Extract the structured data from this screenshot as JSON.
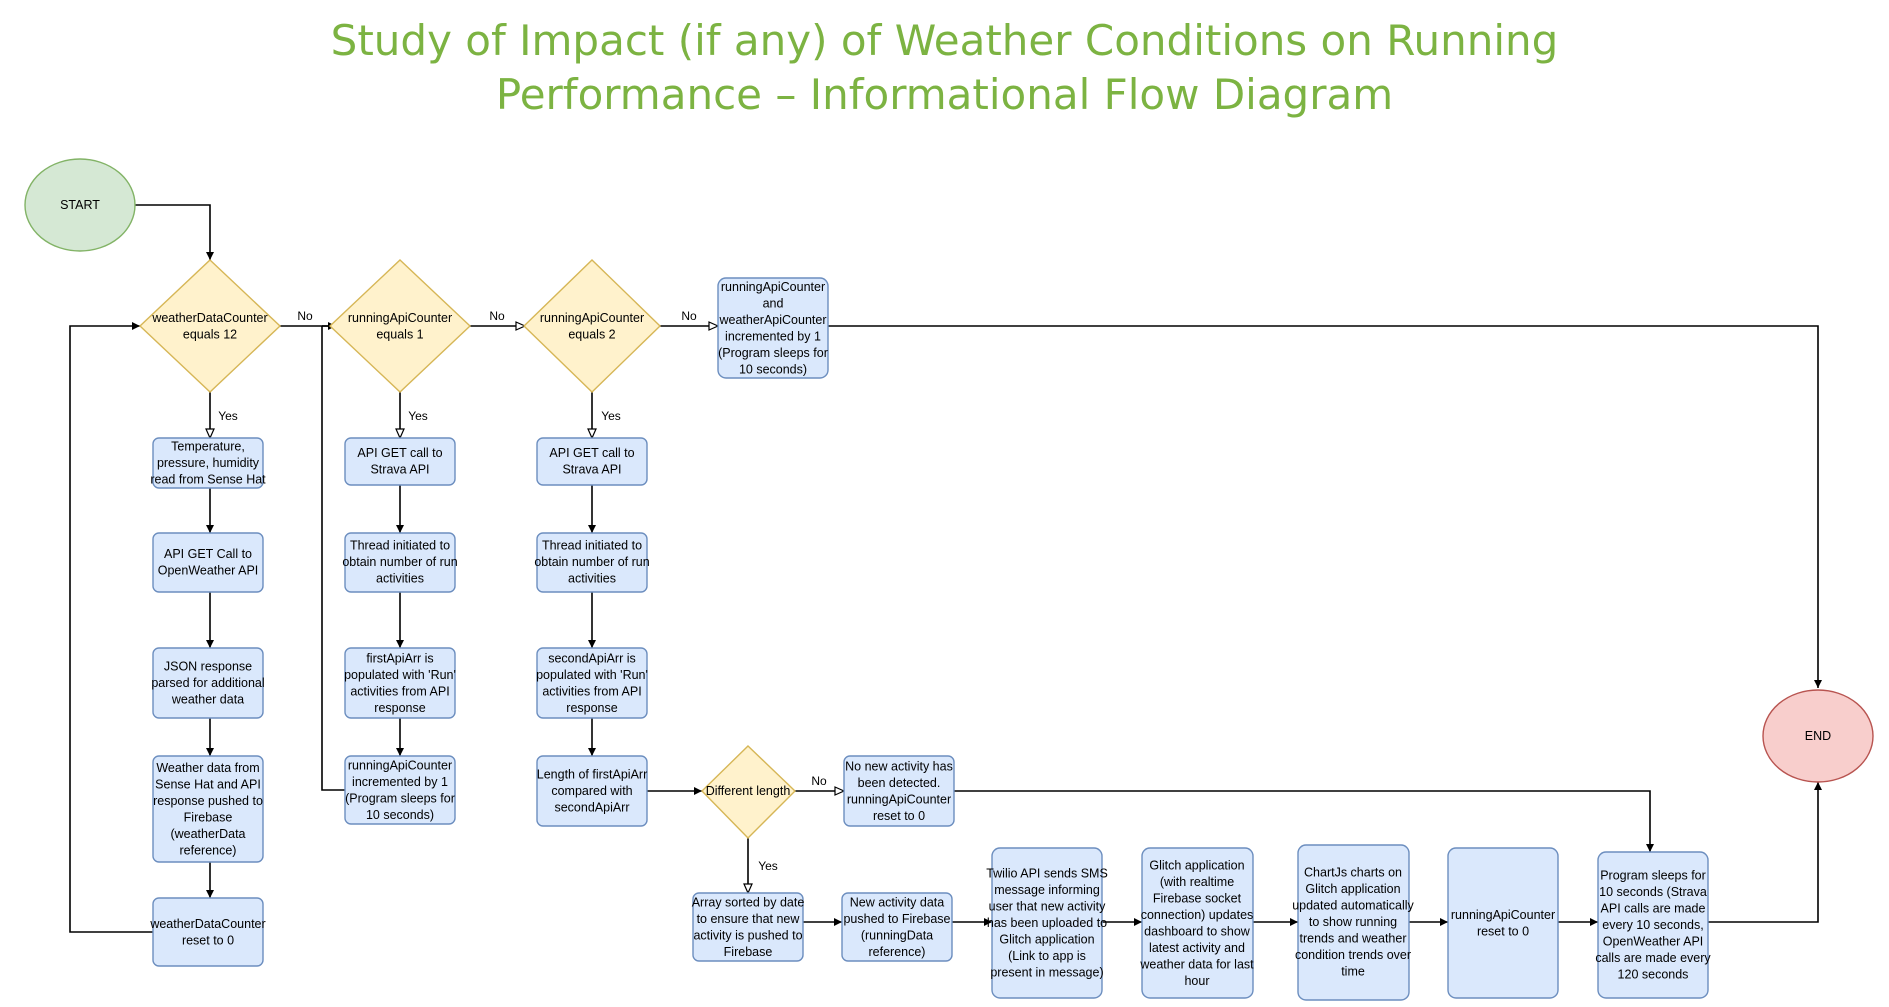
{
  "title": {
    "line1": "Study of Impact (if any) of Weather Conditions on Running",
    "line2": "Performance – Informational Flow Diagram"
  },
  "nodes": {
    "start": "START",
    "end": "END",
    "d_weather": [
      "weatherDataCounter",
      "equals 12"
    ],
    "d_run1": [
      "runningApiCounter",
      "equals 1"
    ],
    "d_run2": [
      "runningApiCounter",
      "equals 2"
    ],
    "d_diff": [
      "Different length"
    ],
    "increment_both": [
      "runningApiCounter",
      "and",
      "weatherApiCounter",
      "incremented by 1",
      "(Program sleeps for",
      "10 seconds)"
    ],
    "sense_hat": [
      "Temperature,",
      "pressure, humidity",
      "read from Sense Hat"
    ],
    "openweather_get": [
      "API GET Call to",
      "OpenWeather API"
    ],
    "json_parse": [
      "JSON response",
      "parsed for additional",
      "weather data"
    ],
    "weather_push": [
      "Weather data from",
      "Sense Hat and API",
      "response pushed to",
      "Firebase",
      "(weatherData",
      "reference)"
    ],
    "weather_reset": [
      "weatherDataCounter",
      "reset to 0"
    ],
    "strava_get_1": [
      "API GET call to",
      "Strava API"
    ],
    "thread_1": [
      "Thread initiated to",
      "obtain number of run",
      "activities"
    ],
    "first_arr": [
      "firstApiArr is",
      "populated with 'Run'",
      "activities from API",
      "response"
    ],
    "run_increment": [
      "runningApiCounter",
      "incremented by 1",
      "(Program sleeps for",
      "10 seconds)"
    ],
    "strava_get_2": [
      "API GET call to",
      "Strava API"
    ],
    "thread_2": [
      "Thread initiated to",
      "obtain number of run",
      "activities"
    ],
    "second_arr": [
      "secondApiArr is",
      "populated with 'Run'",
      "activities from API",
      "response"
    ],
    "compare": [
      "Length of firstApiArr",
      "compared with",
      "secondApiArr"
    ],
    "no_new": [
      "No new activity has",
      "been detected.",
      "runningApiCounter",
      "reset to 0"
    ],
    "sort": [
      "Array sorted by date",
      "to ensure that new",
      "activity is pushed to",
      "Firebase"
    ],
    "new_push": [
      "New activity data",
      "pushed to Firebase",
      "(runningData",
      "reference)"
    ],
    "twilio": [
      "Twilio API sends SMS",
      "message informing",
      "user that new activity",
      "has been uploaded to",
      "Glitch application",
      "(Link to app is",
      "present in message)"
    ],
    "glitch": [
      "Glitch application",
      "(with realtime",
      "Firebase socket",
      "connection) updates",
      "dashboard to show",
      "latest activity and",
      "weather data for last",
      "hour"
    ],
    "chartjs": [
      "ChartJs charts on",
      "Glitch application",
      "updated automatically",
      "to show running",
      "trends and weather",
      "condition trends over",
      "time"
    ],
    "run_reset": [
      "runningApiCounter",
      "reset to 0"
    ],
    "sleep": [
      "Program sleeps for",
      "10 seconds (Strava",
      "API calls are made",
      "every 10 seconds,",
      "OpenWeather API",
      "calls are made every",
      "120 seconds"
    ]
  },
  "edge_labels": {
    "no_1": "No",
    "no_2": "No",
    "no_3": "No",
    "no_4": "No",
    "yes_1": "Yes",
    "yes_2": "Yes",
    "yes_3": "Yes",
    "yes_4": "Yes"
  }
}
